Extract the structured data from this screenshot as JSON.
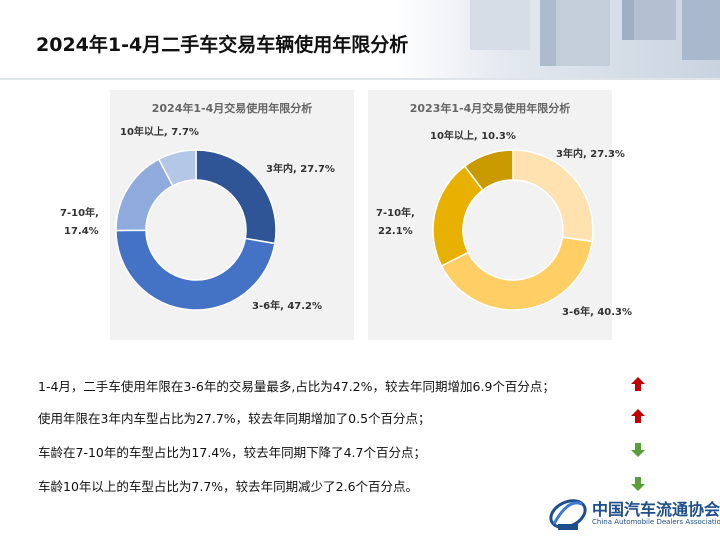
{
  "page": {
    "title": "2024年1-4月二手车交易车辆使用年限分析"
  },
  "chart_data": [
    {
      "type": "pie",
      "title": "2024年1-4月交易使用年限分析",
      "categories": [
        "3年内",
        "3-6年",
        "7-10年",
        "10年以上"
      ],
      "values": [
        27.7,
        47.2,
        17.4,
        7.7
      ],
      "labels": [
        "3年内, 27.7%",
        "3-6年, 47.2%",
        "7-10年,",
        "17.4%",
        "10年以上, 7.7%"
      ],
      "colors": [
        "#2f5597",
        "#4472c4",
        "#8faadc",
        "#b4c7e7"
      ],
      "donut": true
    },
    {
      "type": "pie",
      "title": "2023年1-4月交易使用年限分析",
      "categories": [
        "3年内",
        "3-6年",
        "7-10年",
        "10年以上"
      ],
      "values": [
        27.3,
        40.3,
        22.1,
        10.3
      ],
      "labels": [
        "3年内, 27.3%",
        "3-6年, 40.3%",
        "7-10年,",
        "22.1%",
        "10年以上, 10.3%"
      ],
      "colors": [
        "#ffe2b0",
        "#ffcf66",
        "#e8b000",
        "#c89a00"
      ],
      "donut": true
    }
  ],
  "findings": [
    {
      "text": "1-4月，二手车使用年限在3-6年的交易量最多,占比为47.2%，较去年同期增加6.9个百分点；",
      "trend": "up-arrow-icon"
    },
    {
      "text": "使用年限在3年内车型占比为27.7%，较去年同期增加了0.5个百分点；",
      "trend": "up-arrow-icon"
    },
    {
      "text": "车龄在7-10年的车型占比为17.4%，较去年同期下降了4.7个百分点；",
      "trend": "down-arrow-icon"
    },
    {
      "text": "车龄10年以上的车型占比为7.7%，较去年同期减少了2.6个百分点。",
      "trend": "down-arrow-icon"
    }
  ],
  "colors": {
    "up": "#c00000",
    "down": "#5a9e3a",
    "brand": "#1f4e8c"
  },
  "logo": {
    "name_cn": "中国汽车流通协会",
    "name_en": "China Automobile Dealers Association"
  }
}
